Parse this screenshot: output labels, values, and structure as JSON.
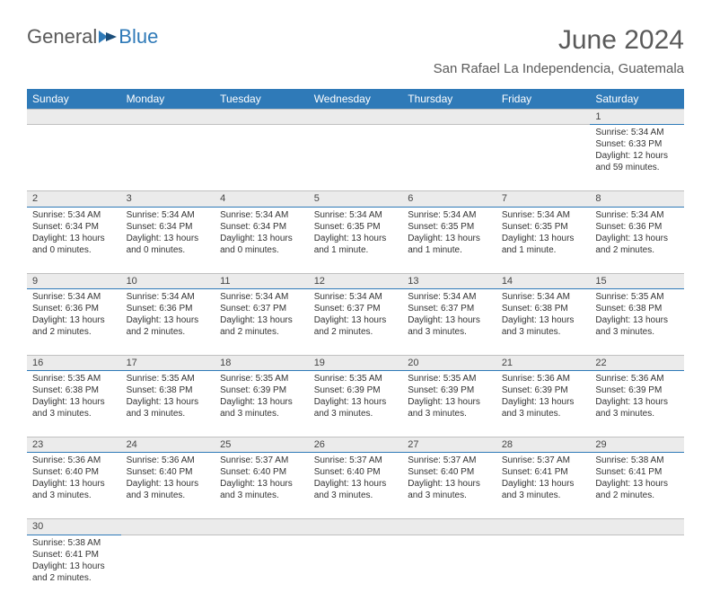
{
  "brand": {
    "part1": "General",
    "part2": "Blue"
  },
  "title": "June 2024",
  "location": "San Rafael La Independencia, Guatemala",
  "colors": {
    "header_bg": "#2f7ab8",
    "header_text": "#ffffff",
    "daynum_bg": "#ebebeb",
    "border_accent": "#2f7ab8",
    "border_light": "#c0c0c0",
    "text": "#333333",
    "muted": "#5a5a5a"
  },
  "day_headers": [
    "Sunday",
    "Monday",
    "Tuesday",
    "Wednesday",
    "Thursday",
    "Friday",
    "Saturday"
  ],
  "weeks": [
    [
      null,
      null,
      null,
      null,
      null,
      null,
      {
        "n": "1",
        "sunrise": "5:34 AM",
        "sunset": "6:33 PM",
        "daylight": "12 hours and 59 minutes."
      }
    ],
    [
      {
        "n": "2",
        "sunrise": "5:34 AM",
        "sunset": "6:34 PM",
        "daylight": "13 hours and 0 minutes."
      },
      {
        "n": "3",
        "sunrise": "5:34 AM",
        "sunset": "6:34 PM",
        "daylight": "13 hours and 0 minutes."
      },
      {
        "n": "4",
        "sunrise": "5:34 AM",
        "sunset": "6:34 PM",
        "daylight": "13 hours and 0 minutes."
      },
      {
        "n": "5",
        "sunrise": "5:34 AM",
        "sunset": "6:35 PM",
        "daylight": "13 hours and 1 minute."
      },
      {
        "n": "6",
        "sunrise": "5:34 AM",
        "sunset": "6:35 PM",
        "daylight": "13 hours and 1 minute."
      },
      {
        "n": "7",
        "sunrise": "5:34 AM",
        "sunset": "6:35 PM",
        "daylight": "13 hours and 1 minute."
      },
      {
        "n": "8",
        "sunrise": "5:34 AM",
        "sunset": "6:36 PM",
        "daylight": "13 hours and 2 minutes."
      }
    ],
    [
      {
        "n": "9",
        "sunrise": "5:34 AM",
        "sunset": "6:36 PM",
        "daylight": "13 hours and 2 minutes."
      },
      {
        "n": "10",
        "sunrise": "5:34 AM",
        "sunset": "6:36 PM",
        "daylight": "13 hours and 2 minutes."
      },
      {
        "n": "11",
        "sunrise": "5:34 AM",
        "sunset": "6:37 PM",
        "daylight": "13 hours and 2 minutes."
      },
      {
        "n": "12",
        "sunrise": "5:34 AM",
        "sunset": "6:37 PM",
        "daylight": "13 hours and 2 minutes."
      },
      {
        "n": "13",
        "sunrise": "5:34 AM",
        "sunset": "6:37 PM",
        "daylight": "13 hours and 3 minutes."
      },
      {
        "n": "14",
        "sunrise": "5:34 AM",
        "sunset": "6:38 PM",
        "daylight": "13 hours and 3 minutes."
      },
      {
        "n": "15",
        "sunrise": "5:35 AM",
        "sunset": "6:38 PM",
        "daylight": "13 hours and 3 minutes."
      }
    ],
    [
      {
        "n": "16",
        "sunrise": "5:35 AM",
        "sunset": "6:38 PM",
        "daylight": "13 hours and 3 minutes."
      },
      {
        "n": "17",
        "sunrise": "5:35 AM",
        "sunset": "6:38 PM",
        "daylight": "13 hours and 3 minutes."
      },
      {
        "n": "18",
        "sunrise": "5:35 AM",
        "sunset": "6:39 PM",
        "daylight": "13 hours and 3 minutes."
      },
      {
        "n": "19",
        "sunrise": "5:35 AM",
        "sunset": "6:39 PM",
        "daylight": "13 hours and 3 minutes."
      },
      {
        "n": "20",
        "sunrise": "5:35 AM",
        "sunset": "6:39 PM",
        "daylight": "13 hours and 3 minutes."
      },
      {
        "n": "21",
        "sunrise": "5:36 AM",
        "sunset": "6:39 PM",
        "daylight": "13 hours and 3 minutes."
      },
      {
        "n": "22",
        "sunrise": "5:36 AM",
        "sunset": "6:39 PM",
        "daylight": "13 hours and 3 minutes."
      }
    ],
    [
      {
        "n": "23",
        "sunrise": "5:36 AM",
        "sunset": "6:40 PM",
        "daylight": "13 hours and 3 minutes."
      },
      {
        "n": "24",
        "sunrise": "5:36 AM",
        "sunset": "6:40 PM",
        "daylight": "13 hours and 3 minutes."
      },
      {
        "n": "25",
        "sunrise": "5:37 AM",
        "sunset": "6:40 PM",
        "daylight": "13 hours and 3 minutes."
      },
      {
        "n": "26",
        "sunrise": "5:37 AM",
        "sunset": "6:40 PM",
        "daylight": "13 hours and 3 minutes."
      },
      {
        "n": "27",
        "sunrise": "5:37 AM",
        "sunset": "6:40 PM",
        "daylight": "13 hours and 3 minutes."
      },
      {
        "n": "28",
        "sunrise": "5:37 AM",
        "sunset": "6:41 PM",
        "daylight": "13 hours and 3 minutes."
      },
      {
        "n": "29",
        "sunrise": "5:38 AM",
        "sunset": "6:41 PM",
        "daylight": "13 hours and 2 minutes."
      }
    ],
    [
      {
        "n": "30",
        "sunrise": "5:38 AM",
        "sunset": "6:41 PM",
        "daylight": "13 hours and 2 minutes."
      },
      null,
      null,
      null,
      null,
      null,
      null
    ]
  ],
  "labels": {
    "sunrise": "Sunrise:",
    "sunset": "Sunset:",
    "daylight": "Daylight:"
  }
}
